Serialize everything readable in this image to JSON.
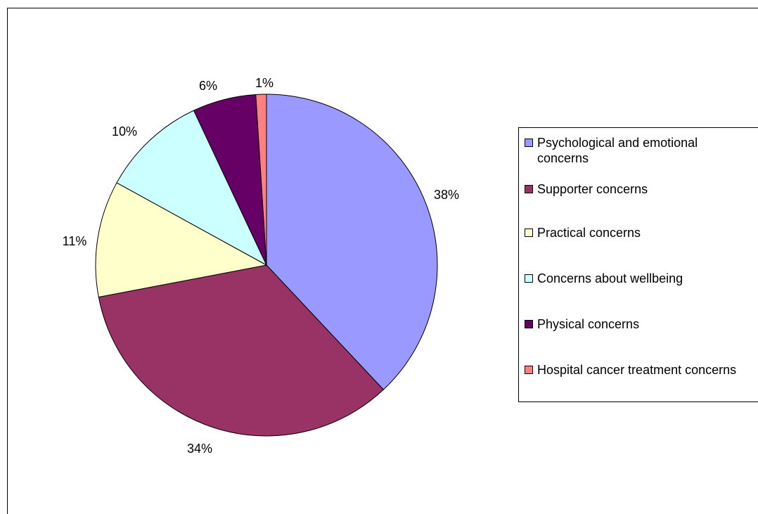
{
  "chart_data": {
    "type": "pie",
    "categories": [
      "Psychological and emotional concerns",
      "Supporter concerns",
      "Practical concerns",
      "Concerns about wellbeing",
      "Physical concerns",
      "Hospital cancer treatment concerns"
    ],
    "values": [
      38,
      34,
      11,
      10,
      6,
      1
    ],
    "data_labels": [
      "38%",
      "34%",
      "11%",
      "10%",
      "6%",
      "1%"
    ],
    "colors": [
      "#9999ff",
      "#993366",
      "#ffffcc",
      "#ccffff",
      "#660066",
      "#ff8080"
    ],
    "legend_position": "right",
    "title": ""
  }
}
